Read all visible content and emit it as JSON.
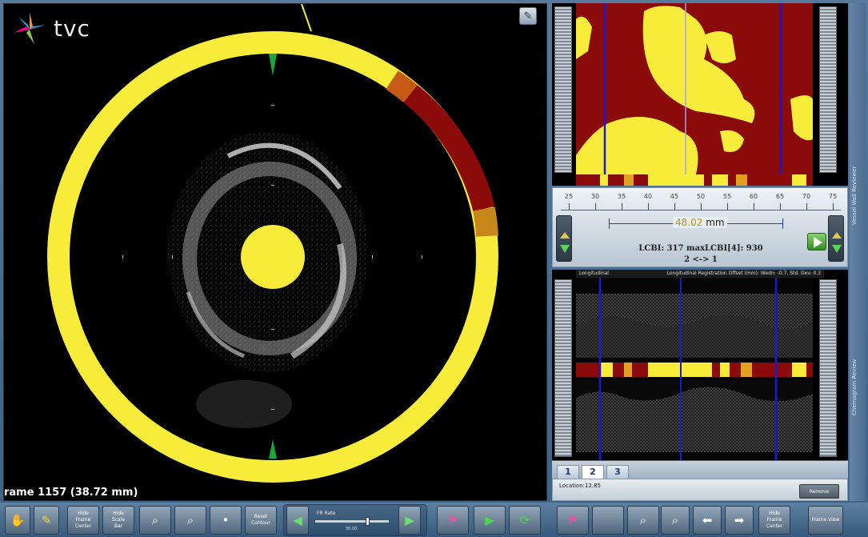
{
  "app": {
    "logo_text": "tvc",
    "frame_label": "rame 1157 (38.72 mm)"
  },
  "colors": {
    "lipid_yellow": "#f7ec3a",
    "fibrous_red": "#8b0a0a",
    "guide_blue": "#1a1ad6",
    "marker_green": "#18a83a",
    "background": "#000000"
  },
  "ruler": {
    "tick_labels": [
      "25",
      "30",
      "35",
      "40",
      "45",
      "50",
      "55",
      "60",
      "65",
      "70",
      "75"
    ]
  },
  "measurement": {
    "value": "48.02",
    "unit": "mm",
    "lcbi_text": "LCBI: 317 maxLCBI[4]: 930",
    "range_text": "2 <-> 1"
  },
  "longitudinal": {
    "header_text": "Longitudinal",
    "header_right": "Longitudinal Registration Offset (mm): Wedn: -0.7, Std. Dev: 0.3"
  },
  "tabs": [
    "1",
    "2",
    "3"
  ],
  "active_tab": 1,
  "location": {
    "label": "Location:",
    "value": "12.85"
  },
  "remove_label": "Remove",
  "side_labels": [
    "Vessel Wall Reviewer",
    "Chemogram Review"
  ],
  "toolbar": {
    "hide_frame_center": "Hide\nFrame\nCenter",
    "hide_scale_bar": "Hide\nScale\nBar",
    "reset_contour": "Reset\nContour",
    "frame_rate": "FR Rate",
    "frame_rate_value": "30.00",
    "hide_frame_center_right": "Hide\nFrame\nCenter",
    "frame_view": "Frame View"
  },
  "slider": {
    "level": 0.72
  }
}
